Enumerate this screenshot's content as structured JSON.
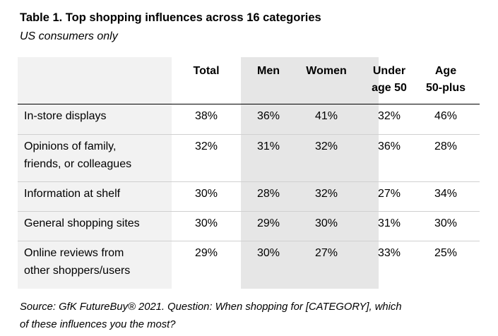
{
  "title": "Table 1. Top shopping influences across 16 categories",
  "subtitle": "US consumers only",
  "table": {
    "columns": [
      "Total",
      "Men",
      "Women",
      "Under\nage 50",
      "Age\n50-plus"
    ],
    "rows": [
      {
        "label": "In-store displays",
        "values": [
          "38%",
          "36%",
          "41%",
          "32%",
          "46%"
        ]
      },
      {
        "label": "Opinions of family,\nfriends, or colleagues",
        "values": [
          "32%",
          "31%",
          "32%",
          "36%",
          "28%"
        ]
      },
      {
        "label": "Information at shelf",
        "values": [
          "30%",
          "28%",
          "32%",
          "27%",
          "34%"
        ]
      },
      {
        "label": "General shopping sites",
        "values": [
          "30%",
          "29%",
          "30%",
          "31%",
          "30%"
        ]
      },
      {
        "label": "Online reviews from\nother shoppers/users",
        "values": [
          "29%",
          "30%",
          "27%",
          "33%",
          "25%"
        ]
      }
    ]
  },
  "source": "Source: GfK FutureBuy® 2021. Question: When shopping for [CATEGORY], which\nof these influences you the most?"
}
